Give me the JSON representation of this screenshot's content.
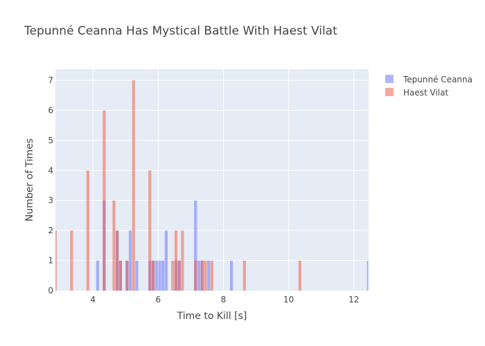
{
  "chart_data": {
    "type": "bar",
    "title": "Tepunné Ceanna Has Mystical Battle With Haest Vilat",
    "xlabel": "Time to Kill [s]",
    "ylabel": "Number of Times",
    "xlim": [
      2.85,
      12.45
    ],
    "ylim": [
      0,
      7.37
    ],
    "bin_width": 0.1,
    "x_ticks": [
      4,
      6,
      8,
      10,
      12
    ],
    "y_ticks": [
      0,
      1,
      2,
      3,
      4,
      5,
      6,
      7
    ],
    "grid": true,
    "legend_position": "top-right",
    "series": [
      {
        "name": "Tepunné Ceanna",
        "color": "#636efa",
        "opacity": 0.5,
        "x": [
          4.15,
          4.35,
          4.75,
          4.85,
          5.05,
          5.15,
          5.35,
          5.75,
          5.85,
          5.95,
          6.05,
          6.15,
          6.25,
          6.55,
          6.65,
          7.15,
          7.25,
          7.35,
          7.55,
          8.25,
          12.45
        ],
        "values": [
          1,
          3,
          2,
          1,
          1,
          2,
          1,
          1,
          1,
          1,
          1,
          1,
          2,
          1,
          1,
          3,
          1,
          1,
          1,
          1,
          1
        ]
      },
      {
        "name": "Haest Vilat",
        "color": "#ef553b",
        "opacity": 0.5,
        "x": [
          2.85,
          3.35,
          3.85,
          4.35,
          4.65,
          4.75,
          4.85,
          5.05,
          5.25,
          5.75,
          5.85,
          6.45,
          6.55,
          6.65,
          6.75,
          7.15,
          7.35,
          7.45,
          7.65,
          8.65,
          10.35
        ],
        "values": [
          2,
          2,
          4,
          6,
          3,
          2,
          1,
          1,
          7,
          4,
          1,
          1,
          2,
          1,
          2,
          1,
          1,
          1,
          1,
          1,
          1
        ]
      }
    ]
  }
}
